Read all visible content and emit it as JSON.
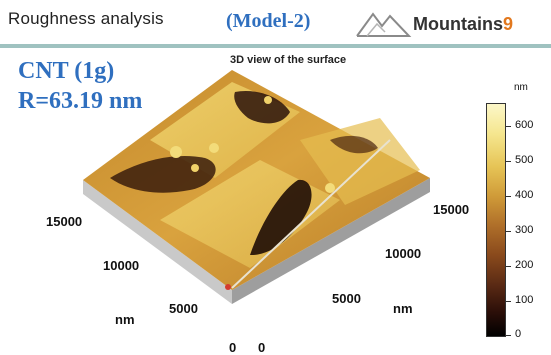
{
  "header": {
    "title": "Roughness analysis",
    "model": "(Model-2)",
    "logo_text": "Mountains",
    "logo_number": "9",
    "accent_color": "#2f6fbf",
    "rule_color": "#9fc2c0"
  },
  "sample": {
    "name": "CNT (1g)",
    "roughness": "R=63.19 nm"
  },
  "plot": {
    "title": "3D view of the surface",
    "left_axis_ticks": [
      "15000",
      "10000",
      "5000",
      "0"
    ],
    "left_axis_unit": "nm",
    "right_axis_ticks": [
      "15000",
      "10000",
      "5000",
      "0"
    ],
    "right_axis_unit": "nm",
    "colorbar_unit": "nm",
    "colorbar_ticks": [
      "600",
      "500",
      "400",
      "300",
      "200",
      "100",
      "0"
    ]
  }
}
